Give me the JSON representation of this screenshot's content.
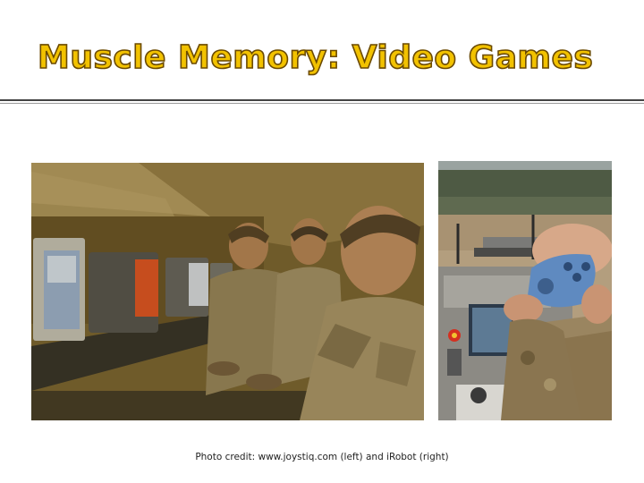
{
  "slide": {
    "title": "Muscle Memory: Video Games",
    "photo_credit": "Photo credit: www.joystiq.com (left) and iRobot (right)"
  },
  "images": {
    "left": {
      "icon": "soldiers-playing-video-games-photo"
    },
    "right": {
      "icon": "robot-controller-photo"
    }
  },
  "colors": {
    "title_fill": "#f2c200",
    "title_outline": "#6b4a00",
    "rule": "#444444"
  }
}
